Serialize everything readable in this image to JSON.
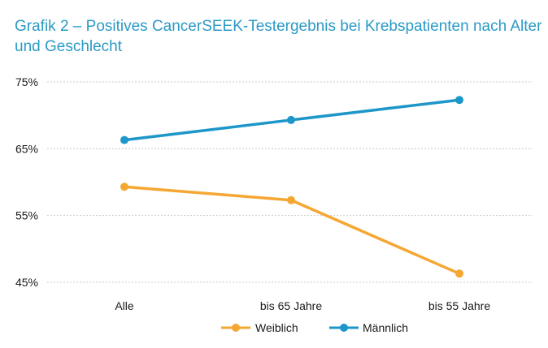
{
  "chart_data": {
    "type": "line",
    "title": "Grafik 2 – Positives CancerSEEK-Testergebnis bei Krebspatienten nach Alter und Geschlecht",
    "xlabel": "",
    "ylabel": "",
    "categories": [
      "Alle",
      "bis 65 Jahre",
      "bis 55 Jahre"
    ],
    "ylim": [
      45,
      75
    ],
    "yticks": [
      75,
      65,
      55,
      45
    ],
    "ytick_labels": [
      "75%",
      "65%",
      "55%",
      "45%"
    ],
    "grid": true,
    "legend_position": "bottom-center",
    "series": [
      {
        "name": "Weiblich",
        "color": "#f5a733",
        "values": [
          59.3,
          57.3,
          46.3
        ]
      },
      {
        "name": "Männlich",
        "color": "#1d96c9",
        "values": [
          66.3,
          69.3,
          72.3
        ]
      }
    ]
  }
}
